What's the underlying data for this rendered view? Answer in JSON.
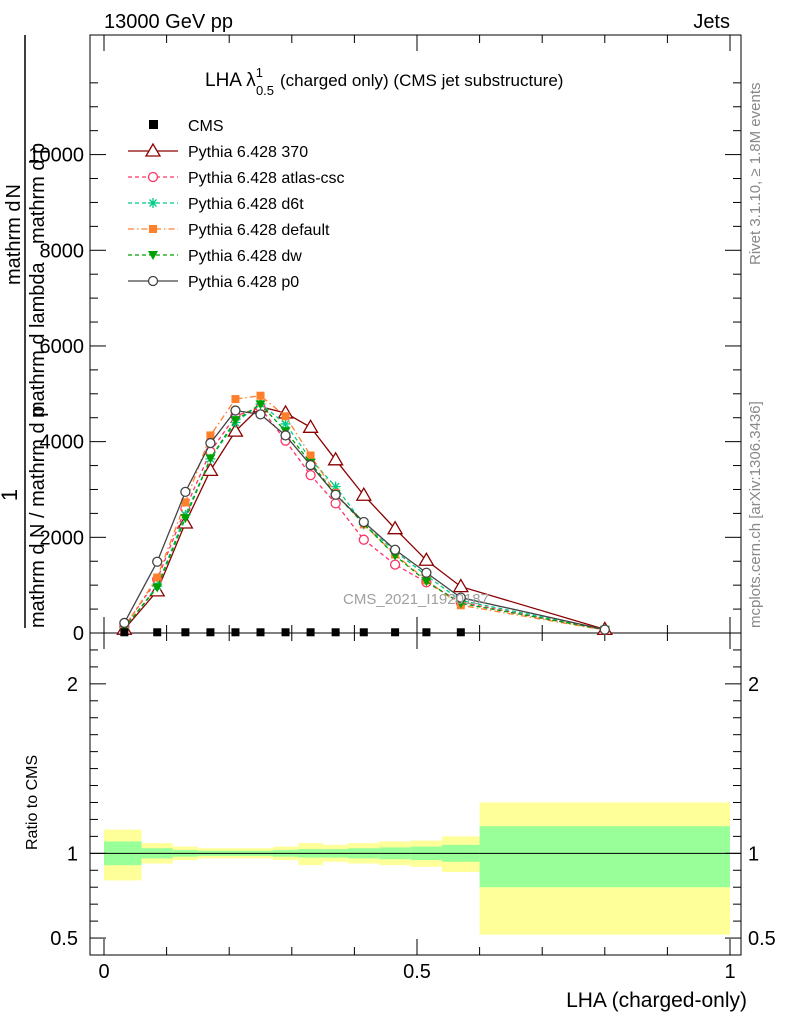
{
  "header": {
    "energy": "13000 GeV pp",
    "process": "Jets"
  },
  "side_labels": {
    "rivet": "Rivet 3.1.10, ≥ 1.8M events",
    "mcplots": "mcplots.cern.ch [arXiv:1306.3436]"
  },
  "watermark": "CMS_2021_I1920187",
  "chart_data": [
    {
      "type": "line",
      "title": "LHA λ¹₀.₅ (charged only) (CMS jet substructure)",
      "title_main": "LHA λ",
      "title_sup": "1",
      "title_sub": "0.5",
      "title_rest": "(charged only) (CMS jet substructure)",
      "ylabel": "1 / mathrm dN / mathrm d p_T mathrm d p_T mathrm d lambda mathrm d^2N",
      "ylabel_lines": [
        "mathrm d N / mathrm d p",
        "mathrm d",
        "mathrm d p",
        "mathrm d lambda",
        "mathrm d",
        "N"
      ],
      "ylabel_one": "1",
      "xlim": [
        0,
        1
      ],
      "ylim": [
        0,
        12500
      ],
      "yticks": [
        0,
        2000,
        4000,
        6000,
        8000,
        10000
      ],
      "ytick_labels": [
        "0",
        "2000",
        "4000",
        "6000",
        "8000",
        "10000"
      ],
      "legend_position": "top-left",
      "cms": {
        "name": "CMS",
        "x": [
          0.0325,
          0.085,
          0.13,
          0.17,
          0.21,
          0.25,
          0.29,
          0.33,
          0.37,
          0.415,
          0.465,
          0.515,
          0.57
        ],
        "y": [
          15,
          15,
          15,
          15,
          15,
          15,
          15,
          15,
          15,
          15,
          15,
          15,
          15
        ]
      },
      "series": [
        {
          "name": "Pythia 6.428 370",
          "color": "#8b0000",
          "marker": "triangle-open",
          "dash": "solid",
          "x": [
            0.0325,
            0.085,
            0.13,
            0.17,
            0.21,
            0.25,
            0.29,
            0.33,
            0.37,
            0.415,
            0.465,
            0.515,
            0.57,
            0.8
          ],
          "y": [
            80,
            880,
            2300,
            3400,
            4220,
            4730,
            4600,
            4300,
            3620,
            2880,
            2180,
            1520,
            970,
            75
          ]
        },
        {
          "name": "Pythia 6.428 atlas-csc",
          "color": "#ff3366",
          "marker": "circle-open",
          "dash": "4,3",
          "x": [
            0.0325,
            0.085,
            0.13,
            0.17,
            0.21,
            0.25,
            0.29,
            0.33,
            0.37,
            0.415,
            0.465,
            0.515,
            0.57,
            0.8
          ],
          "y": [
            130,
            1120,
            2600,
            3790,
            4540,
            4710,
            4020,
            3300,
            2710,
            1950,
            1430,
            1060,
            640,
            65
          ]
        },
        {
          "name": "Pythia 6.428 d6t",
          "color": "#00cc88",
          "marker": "asterisk",
          "dash": "4,3",
          "x": [
            0.0325,
            0.085,
            0.13,
            0.17,
            0.21,
            0.25,
            0.29,
            0.33,
            0.37,
            0.415,
            0.465,
            0.515,
            0.57,
            0.8
          ],
          "y": [
            100,
            980,
            2470,
            3640,
            4400,
            4790,
            4370,
            3630,
            3060,
            2270,
            1710,
            1200,
            680,
            70
          ]
        },
        {
          "name": "Pythia 6.428 default",
          "color": "#ff7f2a",
          "marker": "square-filled",
          "dash": "6,3,1.5,3",
          "x": [
            0.0325,
            0.085,
            0.13,
            0.17,
            0.21,
            0.25,
            0.29,
            0.33,
            0.37,
            0.415,
            0.465,
            0.515,
            0.57,
            0.8
          ],
          "y": [
            120,
            1160,
            2730,
            4130,
            4890,
            4960,
            4530,
            3710,
            2930,
            2270,
            1640,
            1100,
            580,
            60
          ]
        },
        {
          "name": "Pythia 6.428 dw",
          "color": "#00a000",
          "marker": "triangle-down-filled",
          "dash": "4,3",
          "x": [
            0.0325,
            0.085,
            0.13,
            0.17,
            0.21,
            0.25,
            0.29,
            0.33,
            0.37,
            0.415,
            0.465,
            0.515,
            0.57,
            0.8
          ],
          "y": [
            110,
            950,
            2400,
            3650,
            4450,
            4780,
            4220,
            3560,
            2900,
            2280,
            1620,
            1080,
            620,
            68
          ]
        },
        {
          "name": "Pythia 6.428 p0",
          "color": "#444444",
          "marker": "circle-open",
          "dash": "solid",
          "x": [
            0.0325,
            0.085,
            0.13,
            0.17,
            0.21,
            0.25,
            0.29,
            0.33,
            0.37,
            0.415,
            0.465,
            0.515,
            0.57,
            0.8
          ],
          "y": [
            210,
            1490,
            2950,
            3970,
            4650,
            4570,
            4130,
            3510,
            2890,
            2320,
            1740,
            1260,
            740,
            70
          ]
        }
      ]
    },
    {
      "type": "area",
      "xlabel": "LHA (charged-only)",
      "ylabel": "Ratio to CMS",
      "xlim": [
        0,
        1
      ],
      "ylim": [
        0.4,
        2.3
      ],
      "xticks": [
        0,
        0.5,
        1
      ],
      "xtick_labels": [
        "0",
        "0.5",
        "1"
      ],
      "yticks": [
        0.5,
        1,
        2
      ],
      "ytick_labels": [
        "0.5",
        "1",
        "2"
      ],
      "reference": 1,
      "bins": [
        {
          "lo": 0.0,
          "hi": 0.06,
          "stat": [
            0.93,
            1.07
          ],
          "total": [
            0.84,
            1.14
          ]
        },
        {
          "lo": 0.06,
          "hi": 0.11,
          "stat": [
            0.97,
            1.03
          ],
          "total": [
            0.94,
            1.06
          ]
        },
        {
          "lo": 0.11,
          "hi": 0.15,
          "stat": [
            0.98,
            1.02
          ],
          "total": [
            0.96,
            1.04
          ]
        },
        {
          "lo": 0.15,
          "hi": 0.19,
          "stat": [
            0.985,
            1.015
          ],
          "total": [
            0.97,
            1.03
          ]
        },
        {
          "lo": 0.19,
          "hi": 0.23,
          "stat": [
            0.985,
            1.015
          ],
          "total": [
            0.97,
            1.03
          ]
        },
        {
          "lo": 0.23,
          "hi": 0.27,
          "stat": [
            0.985,
            1.015
          ],
          "total": [
            0.97,
            1.03
          ]
        },
        {
          "lo": 0.27,
          "hi": 0.31,
          "stat": [
            0.98,
            1.02
          ],
          "total": [
            0.96,
            1.04
          ]
        },
        {
          "lo": 0.31,
          "hi": 0.35,
          "stat": [
            0.975,
            1.025
          ],
          "total": [
            0.93,
            1.06
          ]
        },
        {
          "lo": 0.35,
          "hi": 0.39,
          "stat": [
            0.975,
            1.025
          ],
          "total": [
            0.95,
            1.05
          ]
        },
        {
          "lo": 0.39,
          "hi": 0.44,
          "stat": [
            0.97,
            1.03
          ],
          "total": [
            0.94,
            1.06
          ]
        },
        {
          "lo": 0.44,
          "hi": 0.49,
          "stat": [
            0.965,
            1.035
          ],
          "total": [
            0.93,
            1.07
          ]
        },
        {
          "lo": 0.49,
          "hi": 0.54,
          "stat": [
            0.96,
            1.04
          ],
          "total": [
            0.92,
            1.075
          ]
        },
        {
          "lo": 0.54,
          "hi": 0.6,
          "stat": [
            0.95,
            1.05
          ],
          "total": [
            0.89,
            1.1
          ]
        },
        {
          "lo": 0.6,
          "hi": 1.0,
          "stat": [
            0.8,
            1.16
          ],
          "total": [
            0.52,
            1.3
          ]
        }
      ]
    }
  ]
}
